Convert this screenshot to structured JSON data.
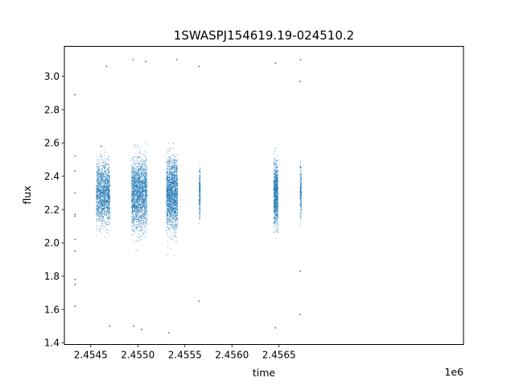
{
  "chart_data": {
    "type": "scatter",
    "title": "1SWASPJ154619.19-024510.2",
    "xlabel": "time",
    "ylabel": "flux",
    "x_offset_label": "1e6",
    "xlim": [
      2454220,
      2458460
    ],
    "ylim": [
      1.39,
      3.18
    ],
    "x_ticks": [
      2454500,
      2455000,
      2455500,
      2456000,
      2456500
    ],
    "x_tick_labels": [
      "2.4545",
      "2.4550",
      "2.4555",
      "2.4560",
      "2.4565"
    ],
    "y_ticks": [
      1.4,
      1.6,
      1.8,
      2.0,
      2.2,
      2.4,
      2.6,
      2.8,
      3.0
    ],
    "y_tick_labels": [
      "1.4",
      "1.6",
      "1.8",
      "2.0",
      "2.2",
      "2.4",
      "2.6",
      "2.8",
      "3.0"
    ],
    "grid": false,
    "legend": "none",
    "marker_color": "#1f77b4",
    "series": [
      {
        "points": [
          {
            "x": 2454333,
            "y": 2.89
          },
          {
            "x": 2454333,
            "y": 2.52
          },
          {
            "x": 2454333,
            "y": 2.43
          },
          {
            "x": 2454333,
            "y": 2.3
          },
          {
            "x": 2454333,
            "y": 2.17
          },
          {
            "x": 2454333,
            "y": 2.16
          },
          {
            "x": 2454333,
            "y": 2.02
          },
          {
            "x": 2454333,
            "y": 1.95
          },
          {
            "x": 2454333,
            "y": 1.78
          },
          {
            "x": 2454333,
            "y": 1.75
          },
          {
            "x": 2454333,
            "y": 1.62
          },
          {
            "x": 2454568,
            "y": 2.32
          },
          {
            "x": 2454612,
            "y": 2.58
          },
          {
            "x": 2454640,
            "y": 2.2
          },
          {
            "x": 2454668,
            "y": 3.06
          },
          {
            "x": 2454690,
            "y": 2.3
          },
          {
            "x": 2454700,
            "y": 1.5
          },
          {
            "x": 2454950,
            "y": 3.1
          },
          {
            "x": 2454990,
            "y": 2.3
          },
          {
            "x": 2454955,
            "y": 1.5
          },
          {
            "x": 2455085,
            "y": 3.09
          },
          {
            "x": 2455040,
            "y": 1.48
          },
          {
            "x": 2455310,
            "y": 2.31
          },
          {
            "x": 2455330,
            "y": 1.46
          },
          {
            "x": 2455415,
            "y": 3.1
          },
          {
            "x": 2455650,
            "y": 3.06
          },
          {
            "x": 2455655,
            "y": 2.25
          },
          {
            "x": 2455650,
            "y": 1.65
          },
          {
            "x": 2456462,
            "y": 3.08
          },
          {
            "x": 2456462,
            "y": 2.32
          },
          {
            "x": 2456462,
            "y": 1.49
          },
          {
            "x": 2456729,
            "y": 3.1
          },
          {
            "x": 2456723,
            "y": 2.97
          },
          {
            "x": 2456732,
            "y": 2.45
          },
          {
            "x": 2456726,
            "y": 1.83
          },
          {
            "x": 2456726,
            "y": 1.57
          }
        ]
      }
    ]
  }
}
